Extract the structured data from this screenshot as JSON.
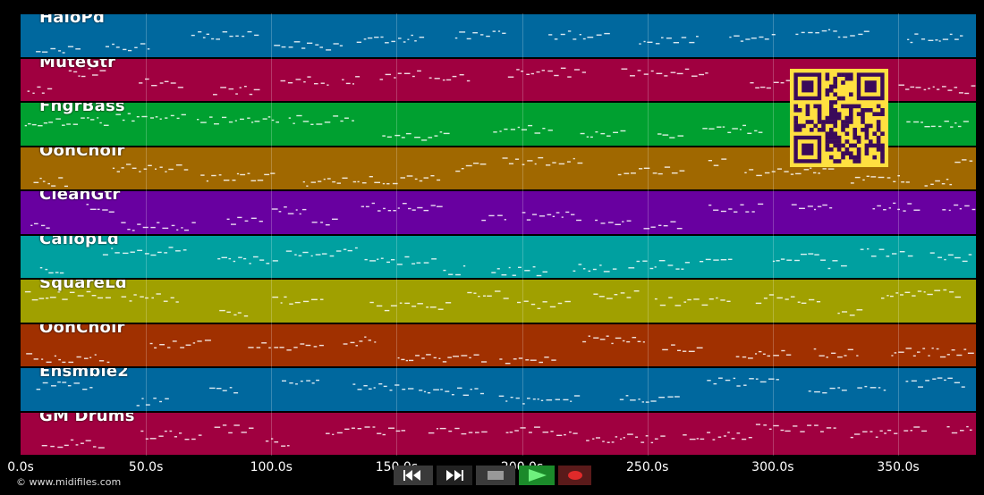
{
  "tracks": [
    {
      "name": "HaloPd",
      "color": "#00689e"
    },
    {
      "name": "MuteGtr",
      "color": "#a00040"
    },
    {
      "name": "FngrBass",
      "color": "#00a030"
    },
    {
      "name": "OohChoir",
      "color": "#a06800"
    },
    {
      "name": "CleanGtr",
      "color": "#6800a0"
    },
    {
      "name": "CaliopLd",
      "color": "#00a0a0"
    },
    {
      "name": "SquareLd",
      "color": "#a0a000"
    },
    {
      "name": "OohChoir",
      "color": "#a03000"
    },
    {
      "name": "Ensmble2",
      "color": "#00689e"
    },
    {
      "name": "GM Drums",
      "color": "#a00040"
    }
  ],
  "timeline": {
    "ticks": [
      "0.0s",
      "50.0s",
      "100.0s",
      "150.0s",
      "200.0s",
      "250.0s",
      "300.0s",
      "350.0s"
    ]
  },
  "footer": {
    "copyright": "© www.midifiles.com"
  },
  "transport": {
    "rewind_icon": "rewind-icon",
    "fast_forward_icon": "fast-forward-icon",
    "stop_icon": "stop-icon",
    "play_icon": "play-icon",
    "record_icon": "record-icon"
  },
  "qr_code": {
    "icon": "qr-code-icon",
    "fg": "#3a0a5a",
    "bg": "#ffe040"
  }
}
